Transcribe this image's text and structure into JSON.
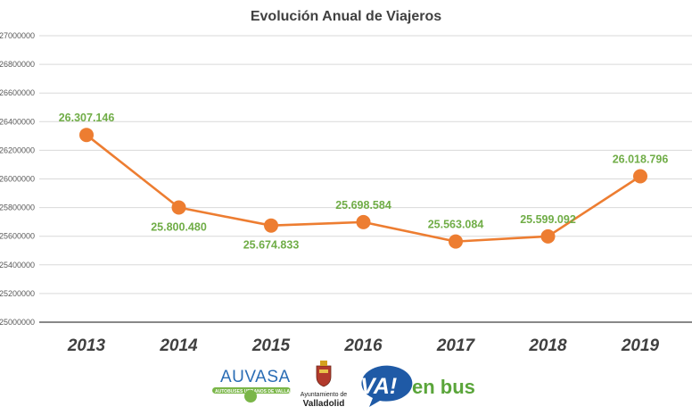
{
  "chart_data": {
    "type": "line",
    "title": "Evolución Anual de Viajeros",
    "categories": [
      "2013",
      "2014",
      "2015",
      "2016",
      "2017",
      "2018",
      "2019"
    ],
    "values": [
      26307146,
      25800480,
      25674833,
      25698584,
      25563084,
      25599092,
      26018796
    ],
    "data_labels": [
      "26.307.146",
      "25.800.480",
      "25.674.833",
      "25.698.584",
      "25.563.084",
      "25.599.092",
      "26.018.796"
    ],
    "data_label_position": [
      "above",
      "below",
      "below",
      "above",
      "above",
      "above",
      "above"
    ],
    "ylim": [
      25000000,
      27000000
    ],
    "yticks": [
      25000000,
      25200000,
      25400000,
      25600000,
      25800000,
      26000000,
      26200000,
      26400000,
      26600000,
      26800000,
      27000000
    ],
    "ytick_labels": [
      "25000000",
      "25200000",
      "25400000",
      "25600000",
      "25800000",
      "26000000",
      "26200000",
      "26400000",
      "26600000",
      "26800000",
      "27000000"
    ],
    "grid": true,
    "legend": "none",
    "colors": {
      "line": "#ed7d31",
      "marker": "#ed7d31",
      "data_label": "#70ad47",
      "grid": "#d9d9d9",
      "axis": "#404040",
      "title": "#404040"
    }
  },
  "logos": {
    "auvasa": {
      "name": "AUVASA",
      "subtitle": "AUTOBUSES URBANOS DE VALLADOLID S.A.",
      "colors": {
        "text": "#2a6db5",
        "band": "#7ab648"
      }
    },
    "ayuntamiento": {
      "line1": "Ayuntamiento de",
      "line2": "Valladolid",
      "icon": "coat-of-arms-icon"
    },
    "vaenbus": {
      "va": "VA!",
      "enbus": "en bus",
      "colors": {
        "bubble": "#1f5aa6",
        "text": "#5aa53a"
      }
    }
  }
}
